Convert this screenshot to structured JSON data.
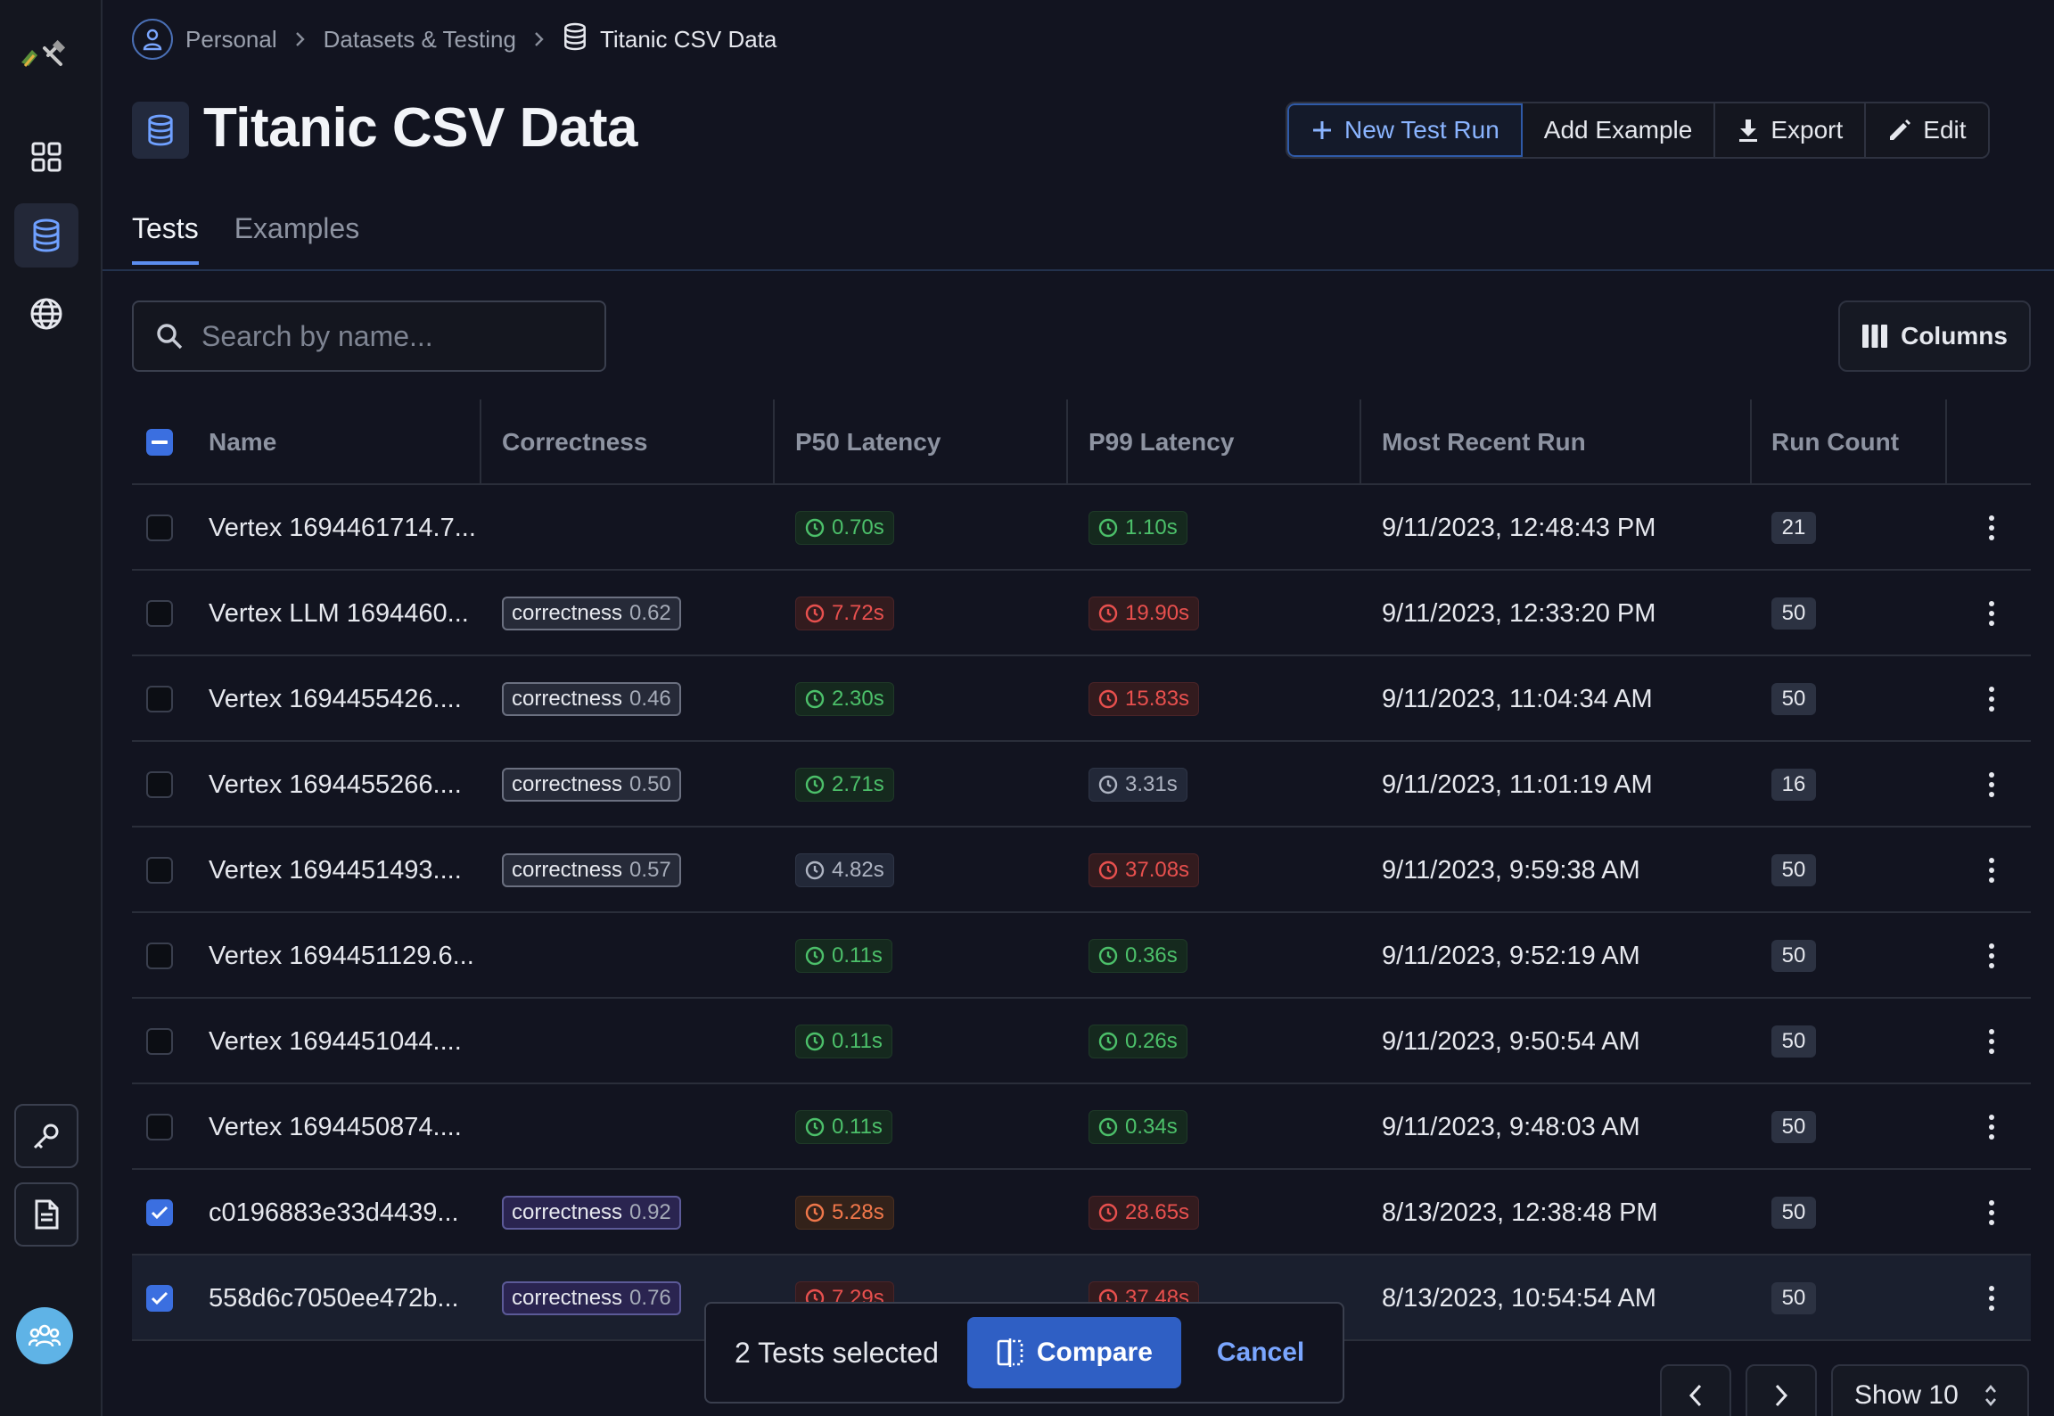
{
  "breadcrumb": {
    "items": [
      "Personal",
      "Datasets & Testing",
      "Titanic CSV Data"
    ]
  },
  "page": {
    "title": "Titanic CSV Data"
  },
  "actions": {
    "new_test_run": "New Test Run",
    "add_example": "Add Example",
    "export": "Export",
    "edit": "Edit"
  },
  "tabs": [
    {
      "label": "Tests",
      "active": true
    },
    {
      "label": "Examples",
      "active": false
    }
  ],
  "search": {
    "placeholder": "Search by name...",
    "value": ""
  },
  "columns_button": "Columns",
  "table": {
    "headers": [
      "Name",
      "Correctness",
      "P50 Latency",
      "P99 Latency",
      "Most Recent Run",
      "Run Count"
    ],
    "rows": [
      {
        "checked": false,
        "name": "Vertex 1694461714.7...",
        "correctness": null,
        "p50": "0.70s",
        "p50_status": "green",
        "p99": "1.10s",
        "p99_status": "green",
        "recent": "9/11/2023, 12:48:43 PM",
        "count": "21"
      },
      {
        "checked": false,
        "name": "Vertex LLM 1694460...",
        "correctness": {
          "label": "correctness",
          "value": "0.62"
        },
        "p50": "7.72s",
        "p50_status": "red",
        "p99": "19.90s",
        "p99_status": "red",
        "recent": "9/11/2023, 12:33:20 PM",
        "count": "50"
      },
      {
        "checked": false,
        "name": "Vertex 1694455426....",
        "correctness": {
          "label": "correctness",
          "value": "0.46"
        },
        "p50": "2.30s",
        "p50_status": "green",
        "p99": "15.83s",
        "p99_status": "red",
        "recent": "9/11/2023, 11:04:34 AM",
        "count": "50"
      },
      {
        "checked": false,
        "name": "Vertex 1694455266....",
        "correctness": {
          "label": "correctness",
          "value": "0.50"
        },
        "p50": "2.71s",
        "p50_status": "green",
        "p99": "3.31s",
        "p99_status": "gray",
        "recent": "9/11/2023, 11:01:19 AM",
        "count": "16"
      },
      {
        "checked": false,
        "name": "Vertex 1694451493....",
        "correctness": {
          "label": "correctness",
          "value": "0.57"
        },
        "p50": "4.82s",
        "p50_status": "gray",
        "p99": "37.08s",
        "p99_status": "red",
        "recent": "9/11/2023, 9:59:38 AM",
        "count": "50"
      },
      {
        "checked": false,
        "name": "Vertex 1694451129.6...",
        "correctness": null,
        "p50": "0.11s",
        "p50_status": "green",
        "p99": "0.36s",
        "p99_status": "green",
        "recent": "9/11/2023, 9:52:19 AM",
        "count": "50"
      },
      {
        "checked": false,
        "name": "Vertex 1694451044....",
        "correctness": null,
        "p50": "0.11s",
        "p50_status": "green",
        "p99": "0.26s",
        "p99_status": "green",
        "recent": "9/11/2023, 9:50:54 AM",
        "count": "50"
      },
      {
        "checked": false,
        "name": "Vertex 1694450874....",
        "correctness": null,
        "p50": "0.11s",
        "p50_status": "green",
        "p99": "0.34s",
        "p99_status": "green",
        "recent": "9/11/2023, 9:48:03 AM",
        "count": "50"
      },
      {
        "checked": true,
        "name": "c0196883e33d4439...",
        "correctness": {
          "label": "correctness",
          "value": "0.92"
        },
        "p50": "5.28s",
        "p50_status": "orange",
        "p99": "28.65s",
        "p99_status": "red",
        "recent": "8/13/2023, 12:38:48 PM",
        "count": "50"
      },
      {
        "checked": true,
        "name": "558d6c7050ee472b...",
        "correctness": {
          "label": "correctness",
          "value": "0.76"
        },
        "p50": "7.29s",
        "p50_status": "red",
        "p99": "37.48s",
        "p99_status": "red",
        "recent": "8/13/2023, 10:54:54 AM",
        "count": "50"
      }
    ]
  },
  "selection_bar": {
    "text": "2 Tests selected",
    "compare": "Compare",
    "cancel": "Cancel"
  },
  "pagination": {
    "show": "Show 10"
  },
  "icons": {
    "logo": "parrot-hammer-logo",
    "nav": [
      "grid-icon",
      "database-icon",
      "globe-icon"
    ],
    "bottom": [
      "key-icon",
      "document-icon",
      "team-icon"
    ]
  },
  "colors": {
    "accent": "#3b6fe0",
    "green": "#4cc06a",
    "red": "#e8504e",
    "orange": "#f0774a"
  }
}
